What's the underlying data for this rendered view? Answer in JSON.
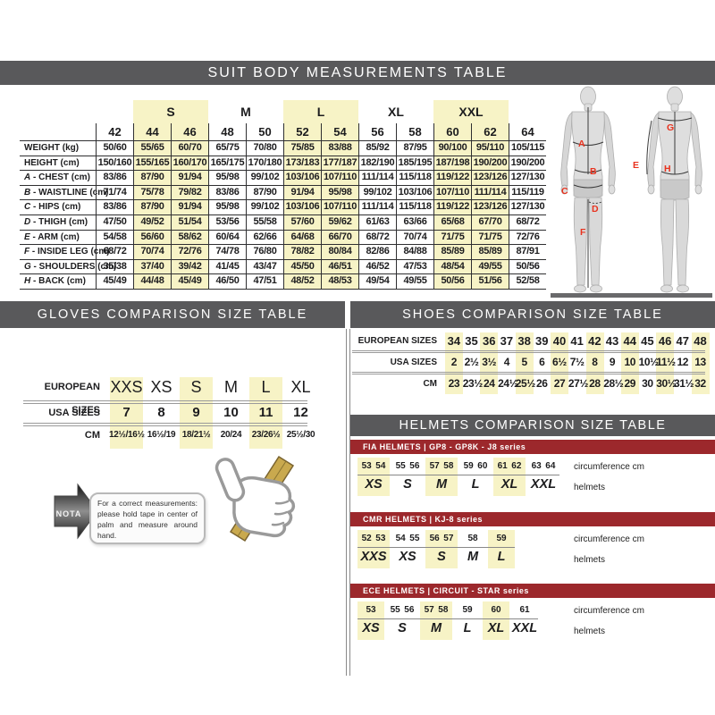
{
  "colors": {
    "header_bar": "#59595b",
    "highlight": "#f7f3c6",
    "series_bar": "#9c282c",
    "accent_red": "#e8321e"
  },
  "suit_table": {
    "header": "SUIT BODY MEASUREMENTS TABLE",
    "columns": [
      "42",
      "44",
      "46",
      "48",
      "50",
      "52",
      "54",
      "56",
      "58",
      "60",
      "62",
      "64"
    ],
    "highlight_cols": [
      1,
      2,
      5,
      6,
      9,
      10
    ],
    "groups": [
      {
        "label": "S",
        "highlight": true
      },
      {
        "label": "M",
        "highlight": false
      },
      {
        "label": "L",
        "highlight": true
      },
      {
        "label": "XL",
        "highlight": false
      },
      {
        "label": "XXL",
        "highlight": true
      }
    ],
    "rows": [
      {
        "letter": "",
        "label": "WEIGHT (kg)",
        "values": [
          "50/60",
          "55/65",
          "60/70",
          "65/75",
          "70/80",
          "75/85",
          "83/88",
          "85/92",
          "87/95",
          "90/100",
          "95/110",
          "105/115"
        ]
      },
      {
        "letter": "",
        "label": "HEIGHT (cm)",
        "values": [
          "150/160",
          "155/165",
          "160/170",
          "165/175",
          "170/180",
          "173/183",
          "177/187",
          "182/190",
          "185/195",
          "187/198",
          "190/200",
          "190/200"
        ]
      },
      {
        "letter": "A",
        "label": "CHEST (cm)",
        "values": [
          "83/86",
          "87/90",
          "91/94",
          "95/98",
          "99/102",
          "103/106",
          "107/110",
          "111/114",
          "115/118",
          "119/122",
          "123/126",
          "127/130"
        ]
      },
      {
        "letter": "B",
        "label": "WAISTLINE (cm)",
        "values": [
          "71/74",
          "75/78",
          "79/82",
          "83/86",
          "87/90",
          "91/94",
          "95/98",
          "99/102",
          "103/106",
          "107/110",
          "111/114",
          "115/119"
        ]
      },
      {
        "letter": "C",
        "label": "HIPS (cm)",
        "values": [
          "83/86",
          "87/90",
          "91/94",
          "95/98",
          "99/102",
          "103/106",
          "107/110",
          "111/114",
          "115/118",
          "119/122",
          "123/126",
          "127/130"
        ]
      },
      {
        "letter": "D",
        "label": "THIGH (cm)",
        "values": [
          "47/50",
          "49/52",
          "51/54",
          "53/56",
          "55/58",
          "57/60",
          "59/62",
          "61/63",
          "63/66",
          "65/68",
          "67/70",
          "68/72"
        ]
      },
      {
        "letter": "E",
        "label": "ARM (cm)",
        "values": [
          "54/58",
          "56/60",
          "58/62",
          "60/64",
          "62/66",
          "64/68",
          "66/70",
          "68/72",
          "70/74",
          "71/75",
          "71/75",
          "72/76"
        ]
      },
      {
        "letter": "F",
        "label": "INSIDE LEG (cm)",
        "values": [
          "68/72",
          "70/74",
          "72/76",
          "74/78",
          "76/80",
          "78/82",
          "80/84",
          "82/86",
          "84/88",
          "85/89",
          "85/89",
          "87/91"
        ]
      },
      {
        "letter": "G",
        "label": "SHOULDERS (cm)",
        "values": [
          "35/38",
          "37/40",
          "39/42",
          "41/45",
          "43/47",
          "45/50",
          "46/51",
          "46/52",
          "47/53",
          "48/54",
          "49/55",
          "50/56"
        ]
      },
      {
        "letter": "H",
        "label": "BACK (cm)",
        "values": [
          "45/49",
          "44/48",
          "45/49",
          "46/50",
          "47/51",
          "48/52",
          "48/53",
          "49/54",
          "49/55",
          "50/56",
          "51/56",
          "52/58"
        ]
      }
    ],
    "figure_letters": [
      "A",
      "B",
      "C",
      "D",
      "E",
      "F",
      "G",
      "H"
    ]
  },
  "gloves": {
    "header": "GLOVES COMPARISON SIZE TABLE",
    "row_labels": [
      "EUROPEAN SIZES",
      "USA SIZES",
      "CM"
    ],
    "columns": [
      {
        "eu": "XXS",
        "usa": "7",
        "cm": "12½/16½",
        "highlight": true
      },
      {
        "eu": "XS",
        "usa": "8",
        "cm": "16½/19",
        "highlight": false
      },
      {
        "eu": "S",
        "usa": "9",
        "cm": "18/21½",
        "highlight": true
      },
      {
        "eu": "M",
        "usa": "10",
        "cm": "20/24",
        "highlight": false
      },
      {
        "eu": "L",
        "usa": "11",
        "cm": "23/26½",
        "highlight": true
      },
      {
        "eu": "XL",
        "usa": "12",
        "cm": "25½/30",
        "highlight": false
      }
    ],
    "nota": {
      "label": "NOTA",
      "text": "For a correct measurements: please hold tape in center of palm and measure around hand."
    }
  },
  "shoes": {
    "header": "SHOES COMPARISON SIZE TABLE",
    "row_labels": [
      "EUROPEAN SIZES",
      "USA SIZES",
      "CM"
    ],
    "columns": [
      {
        "eu": "34",
        "usa": "2",
        "cm": "23",
        "highlight": true
      },
      {
        "eu": "35",
        "usa": "2½",
        "cm": "23½",
        "highlight": false
      },
      {
        "eu": "36",
        "usa": "3½",
        "cm": "24",
        "highlight": true
      },
      {
        "eu": "37",
        "usa": "4",
        "cm": "24½",
        "highlight": false
      },
      {
        "eu": "38",
        "usa": "5",
        "cm": "25½",
        "highlight": true
      },
      {
        "eu": "39",
        "usa": "6",
        "cm": "26",
        "highlight": false
      },
      {
        "eu": "40",
        "usa": "6½",
        "cm": "27",
        "highlight": true
      },
      {
        "eu": "41",
        "usa": "7½",
        "cm": "27½",
        "highlight": false
      },
      {
        "eu": "42",
        "usa": "8",
        "cm": "28",
        "highlight": true
      },
      {
        "eu": "43",
        "usa": "9",
        "cm": "28½",
        "highlight": false
      },
      {
        "eu": "44",
        "usa": "10",
        "cm": "29",
        "highlight": true
      },
      {
        "eu": "45",
        "usa": "10½",
        "cm": "30",
        "highlight": false
      },
      {
        "eu": "46",
        "usa": "11½",
        "cm": "30½",
        "highlight": true
      },
      {
        "eu": "47",
        "usa": "12",
        "cm": "31½",
        "highlight": false
      },
      {
        "eu": "48",
        "usa": "13",
        "cm": "32",
        "highlight": true
      }
    ]
  },
  "helmets": {
    "header": "HELMETS COMPARISON SIZE TABLE",
    "col_labels": [
      "circumference cm",
      "helmets"
    ],
    "tables": [
      {
        "title": "FIA HELMETS | GP8 - GP8K - J8 series",
        "groups": [
          {
            "numbers": [
              "53",
              "54"
            ],
            "size": "XS",
            "highlight": true
          },
          {
            "numbers": [
              "55",
              "56"
            ],
            "size": "S",
            "highlight": false
          },
          {
            "numbers": [
              "57",
              "58"
            ],
            "size": "M",
            "highlight": true
          },
          {
            "numbers": [
              "59",
              "60"
            ],
            "size": "L",
            "highlight": false
          },
          {
            "numbers": [
              "61",
              "62"
            ],
            "size": "XL",
            "highlight": true
          },
          {
            "numbers": [
              "63",
              "64"
            ],
            "size": "XXL",
            "highlight": false
          }
        ]
      },
      {
        "title": "CMR HELMETS | KJ-8 series",
        "groups": [
          {
            "numbers": [
              "52",
              "53"
            ],
            "size": "XXS",
            "highlight": true
          },
          {
            "numbers": [
              "54",
              "55"
            ],
            "size": "XS",
            "highlight": false
          },
          {
            "numbers": [
              "56",
              "57"
            ],
            "size": "S",
            "highlight": true
          },
          {
            "numbers": [
              "58"
            ],
            "size": "M",
            "highlight": false
          },
          {
            "numbers": [
              "59"
            ],
            "size": "L",
            "highlight": true
          }
        ]
      },
      {
        "title": "ECE HELMETS | CIRCUIT - STAR series",
        "groups": [
          {
            "numbers": [
              "53"
            ],
            "size": "XS",
            "highlight": true
          },
          {
            "numbers": [
              "55",
              "56"
            ],
            "size": "S",
            "highlight": false
          },
          {
            "numbers": [
              "57",
              "58"
            ],
            "size": "M",
            "highlight": true
          },
          {
            "numbers": [
              "59"
            ],
            "size": "L",
            "highlight": false
          },
          {
            "numbers": [
              "60"
            ],
            "size": "XL",
            "highlight": true
          },
          {
            "numbers": [
              "61"
            ],
            "size": "XXL",
            "highlight": false
          }
        ]
      }
    ]
  }
}
